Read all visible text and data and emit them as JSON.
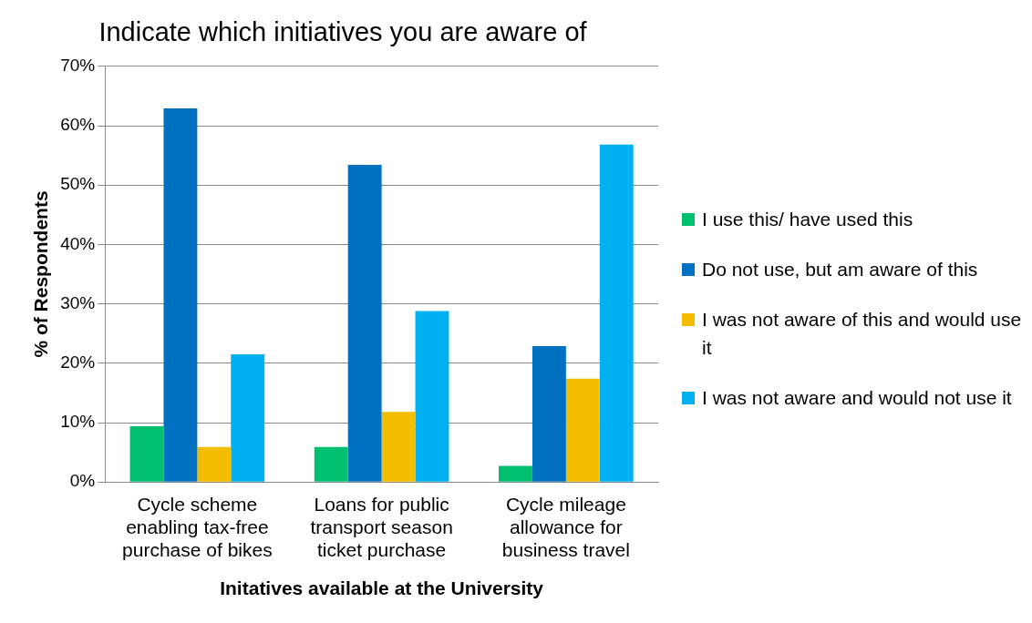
{
  "chart_data": {
    "type": "bar",
    "title": "Indicate which initiatives you are aware of",
    "xlabel": "Initatives available at the University",
    "ylabel": "% of Respondents",
    "categories": [
      "Cycle scheme enabling tax-free purchase of bikes",
      "Loans for public transport season ticket purchase",
      "Cycle mileage allowance for business travel"
    ],
    "series": [
      {
        "name": "I use this/ have used this",
        "color": "#00bf6f",
        "values": [
          9.4,
          5.9,
          2.7
        ]
      },
      {
        "name": "Do not use, but am aware of this",
        "color": "#0070c0",
        "values": [
          62.9,
          53.4,
          22.9
        ]
      },
      {
        "name": "I was not aware of this and would use it",
        "color": "#f5bd00",
        "values": [
          5.9,
          11.8,
          17.4
        ]
      },
      {
        "name": "I was not aware and would not use it",
        "color": "#00b0f0",
        "values": [
          21.5,
          28.8,
          56.8
        ]
      }
    ],
    "ylim": [
      0,
      70
    ],
    "yticks": [
      {
        "value": 0,
        "label": "0%"
      },
      {
        "value": 10,
        "label": "10%"
      },
      {
        "value": 20,
        "label": "20%"
      },
      {
        "value": 30,
        "label": "30%"
      },
      {
        "value": 40,
        "label": "40%"
      },
      {
        "value": 50,
        "label": "50%"
      },
      {
        "value": 60,
        "label": "60%"
      },
      {
        "value": 70,
        "label": "70%"
      }
    ],
    "grid": "y",
    "legend": "right"
  }
}
